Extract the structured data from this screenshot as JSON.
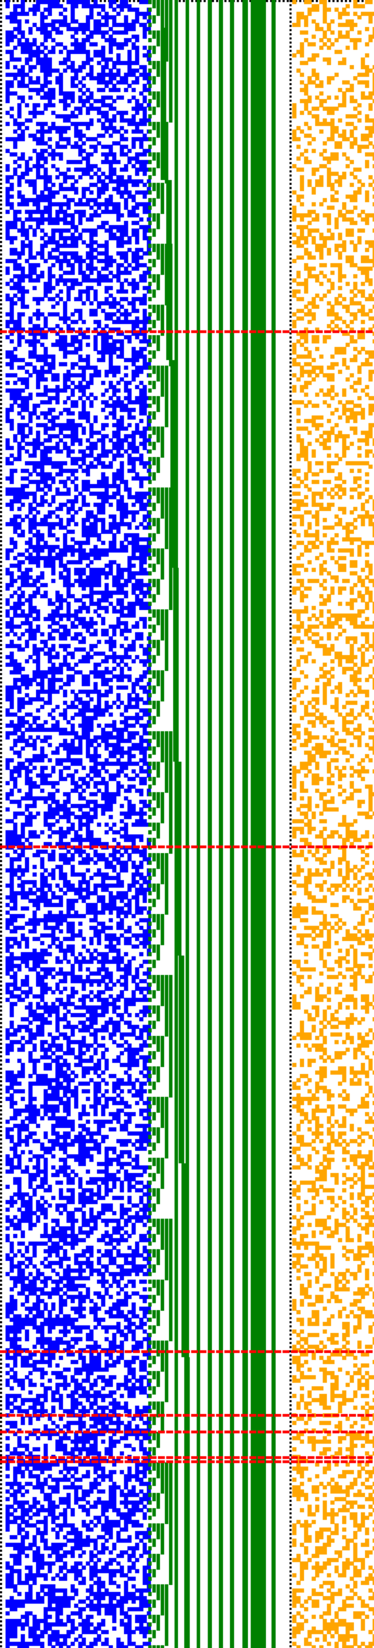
{
  "colors": {
    "background": "#ffffff",
    "left_border": "#000000",
    "random_noise": "#0000ff",
    "staircase_diagonal": "#008000",
    "vertical_stripes": "#008000",
    "sparse_bits": "#ffa500",
    "markers": "#ff0000"
  },
  "regions": [
    {
      "name": "left-border",
      "pattern": "dotted-column",
      "color_key": "left_border"
    },
    {
      "name": "random-noise-block",
      "pattern": "dense-random-bits",
      "fill_ratio": 0.5,
      "color_key": "random_noise"
    },
    {
      "name": "staircase-block",
      "pattern": "staircase-diagonal",
      "color_key": "staircase_diagonal"
    },
    {
      "name": "vertical-stripes-block",
      "pattern": "solid-vertical-stripes",
      "color_key": "vertical_stripes"
    },
    {
      "name": "sparse-bits-block",
      "pattern": "sparse-random-bits",
      "fill_ratio": 0.35,
      "color_key": "sparse_bits"
    }
  ],
  "marker_rows": {
    "color_key": "markers",
    "count": 7,
    "pattern": "dashed-horizontal-lines"
  }
}
